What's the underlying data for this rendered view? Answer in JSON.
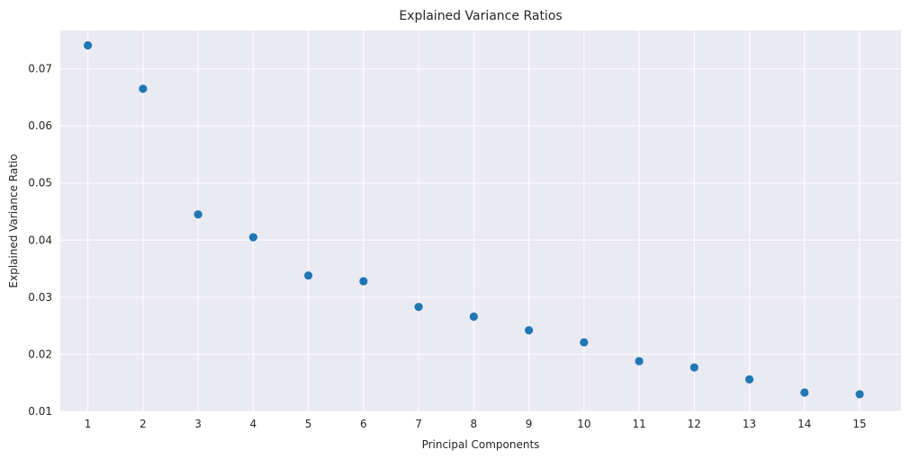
{
  "chart_data": {
    "type": "scatter",
    "title": "Explained Variance Ratios",
    "xlabel": "Principal Components",
    "ylabel": "Explained Variance Ratio",
    "x": [
      1,
      2,
      3,
      4,
      5,
      6,
      7,
      8,
      9,
      10,
      11,
      12,
      13,
      14,
      15
    ],
    "x_tick_labels": [
      "1",
      "2",
      "3",
      "4",
      "5",
      "6",
      "7",
      "8",
      "9",
      "10",
      "11",
      "12",
      "13",
      "14",
      "15"
    ],
    "y_ticks": [
      0.01,
      0.02,
      0.03,
      0.04,
      0.05,
      0.06,
      0.07
    ],
    "y_tick_labels": [
      "0.01",
      "0.02",
      "0.03",
      "0.04",
      "0.05",
      "0.06",
      "0.07"
    ],
    "xlim": [
      0.5,
      15.75
    ],
    "ylim": [
      0.01,
      0.0767
    ],
    "series": [
      {
        "values": [
          0.0741,
          0.0665,
          0.0445,
          0.0405,
          0.0338,
          0.0328,
          0.0283,
          0.0266,
          0.0242,
          0.0221,
          0.0188,
          0.0177,
          0.0156,
          0.0133,
          0.013
        ],
        "color": "#1f77b4"
      }
    ],
    "grid": true,
    "background_color": "#eaeaf2",
    "grid_color": "#ffffff"
  }
}
